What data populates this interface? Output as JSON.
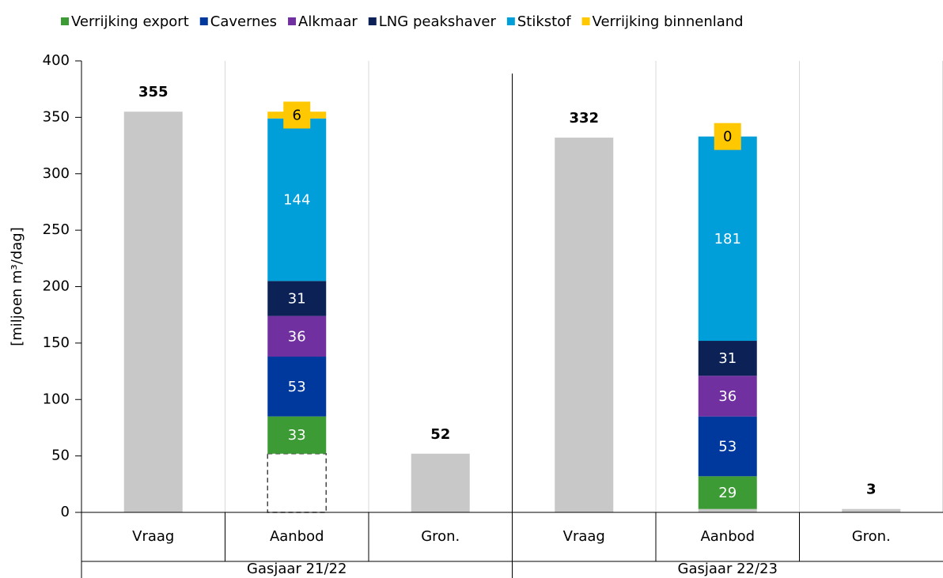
{
  "chart_data": {
    "type": "stacked_bar",
    "ylabel": "[miljoen m³/dag]",
    "ylim": [
      0,
      400
    ],
    "yticks": [
      0,
      50,
      100,
      150,
      200,
      250,
      300,
      350,
      400
    ],
    "grid": true,
    "legend": "top",
    "groups": [
      {
        "name": "Gasjaar 21/22",
        "categories": [
          "Vraag",
          "Aanbod",
          "Gron."
        ]
      },
      {
        "name": "Gasjaar 22/23",
        "categories": [
          "Vraag",
          "Aanbod",
          "Gron."
        ]
      }
    ],
    "base": {
      "color": "#c8c8c8",
      "values": [
        355,
        52,
        52,
        332,
        3,
        3
      ],
      "outline_only": [
        false,
        true,
        false,
        false,
        false,
        false
      ],
      "labeled": [
        true,
        false,
        true,
        true,
        false,
        true
      ]
    },
    "series": [
      {
        "name": "Verrijking export",
        "color": "#3d9b35",
        "values": [
          null,
          33,
          null,
          null,
          29,
          null
        ]
      },
      {
        "name": "Cavernes",
        "color": "#00399e",
        "values": [
          null,
          53,
          null,
          null,
          53,
          null
        ]
      },
      {
        "name": "Alkmaar",
        "color": "#7030a0",
        "values": [
          null,
          36,
          null,
          null,
          36,
          null
        ]
      },
      {
        "name": "LNG peakshaver",
        "color": "#0c2256",
        "values": [
          null,
          31,
          null,
          null,
          31,
          null
        ]
      },
      {
        "name": "Stikstof",
        "color": "#009fda",
        "values": [
          null,
          144,
          null,
          null,
          181,
          null
        ]
      },
      {
        "name": "Verrijking binnenland",
        "color": "#ffc800",
        "label_style": "box",
        "values": [
          null,
          6,
          null,
          null,
          0,
          null
        ]
      }
    ]
  }
}
